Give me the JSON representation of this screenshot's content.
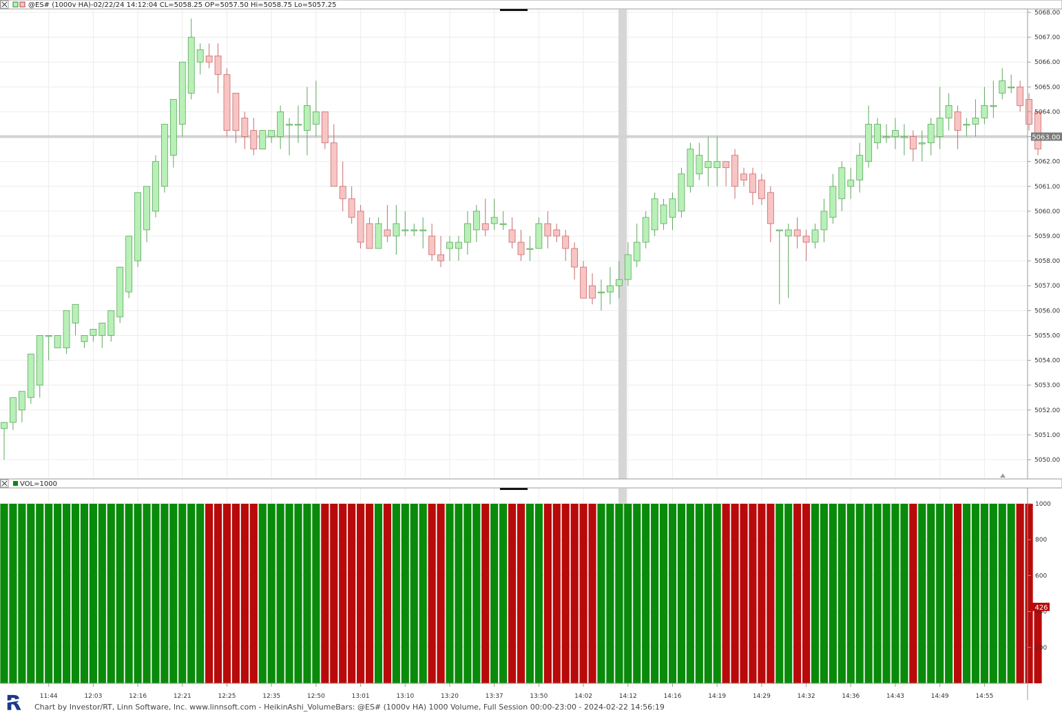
{
  "price_pane": {
    "title": "@ES# (1000v HA)-02/22/24 14:12:04 CL=5058.25 OP=5057.50 Hi=5058.75 Lo=5057.25",
    "current_price_label": "5063.00",
    "close_icon": "close-x-icon"
  },
  "volume_pane": {
    "title": "VOL=1000",
    "current_volume_label": "426",
    "close_icon": "close-x-icon"
  },
  "footer": {
    "text": "Chart by Investor/RT, Linn Software, Inc. www.linnsoft.com - HeikinAshi_VolumeBars: @ES# (1000v HA) 1000 Volume, Full Session 00:00-23:00 - 2024-02-22 14:56:19",
    "logo_letter": "R",
    "logo_icon": "investor-rt-logo-icon"
  },
  "colors": {
    "up_fill": "#b8f0b8",
    "up_border": "#5aa85a",
    "down_fill": "#f8c4c4",
    "down_border": "#c86a6a",
    "vol_up": "#0a8a0a",
    "vol_down": "#b80a0a",
    "grid": "#ececec",
    "hline": "#d2d2d2"
  },
  "chart_data": [
    {
      "type": "candlestick",
      "name": "price",
      "y_ticks": [
        "5050.00",
        "5051.00",
        "5052.00",
        "5053.00",
        "5054.00",
        "5055.00",
        "5056.00",
        "5057.00",
        "5058.00",
        "5059.00",
        "5060.00",
        "5061.00",
        "5062.00",
        "5063.00",
        "5064.00",
        "5065.00",
        "5066.00",
        "5067.00",
        "5068.00"
      ],
      "ylim": [
        5049.3,
        5068.2
      ],
      "x_tick_labels": [
        "11:44",
        "12:03",
        "12:16",
        "12:21",
        "12:25",
        "12:35",
        "12:50",
        "13:01",
        "13:10",
        "13:20",
        "13:37",
        "13:50",
        "14:02",
        "14:12",
        "14:16",
        "14:19",
        "14:29",
        "14:32",
        "14:36",
        "14:43",
        "14:49",
        "14:55"
      ],
      "x_tick_bar_index": [
        5,
        10,
        15,
        20,
        25,
        30,
        35,
        40,
        45,
        50,
        55,
        60,
        65,
        70,
        75,
        80,
        85,
        90,
        95,
        100,
        105,
        110
      ],
      "reference_line": 5063.0,
      "highlight_bar_index": 69,
      "bars": [
        [
          5051.25,
          5051.5,
          5050.0,
          5051.25
        ],
        [
          5051.5,
          5052.5,
          5051.2,
          5052.5
        ],
        [
          5052.0,
          5052.75,
          5051.5,
          5052.7
        ],
        [
          5052.5,
          5054.25,
          5052.25,
          5054.25
        ],
        [
          5053.0,
          5055.0,
          5052.5,
          5054.9
        ],
        [
          5055.0,
          5055.0,
          5054.0,
          5054.25
        ],
        [
          5054.5,
          5055.0,
          5054.5,
          5054.75
        ],
        [
          5054.5,
          5056.0,
          5054.25,
          5055.5
        ],
        [
          5055.5,
          5056.25,
          5055.0,
          5055.75
        ],
        [
          5054.75,
          5055.0,
          5054.5,
          5055.0
        ],
        [
          5055.0,
          5055.25,
          5054.75,
          5055.0
        ],
        [
          5055.0,
          5055.5,
          5054.5,
          5055.0
        ],
        [
          5055.0,
          5056.0,
          5054.75,
          5055.75
        ],
        [
          5055.75,
          5057.75,
          5055.5,
          5057.75
        ],
        [
          5056.75,
          5059.0,
          5056.5,
          5059.0
        ],
        [
          5058.0,
          5060.75,
          5057.75,
          5060.25
        ],
        [
          5059.25,
          5061.0,
          5058.75,
          5061.0
        ],
        [
          5060.0,
          5062.0,
          5059.75,
          5062.25
        ],
        [
          5061.0,
          5063.5,
          5060.75,
          5063.5
        ],
        [
          5062.25,
          5064.5,
          5061.75,
          5064.5
        ],
        [
          5063.5,
          5066.0,
          5063.0,
          5066.0
        ],
        [
          5064.75,
          5067.0,
          5064.5,
          5067.75
        ],
        [
          5066.0,
          5066.5,
          5065.5,
          5066.75
        ],
        [
          5066.25,
          5066.0,
          5065.75,
          5066.75
        ],
        [
          5066.25,
          5065.5,
          5064.75,
          5066.75
        ],
        [
          5065.5,
          5063.25,
          5063.0,
          5065.75
        ],
        [
          5064.75,
          5063.25,
          5062.75,
          5064.75
        ],
        [
          5063.75,
          5063.0,
          5062.5,
          5064.0
        ],
        [
          5063.25,
          5062.5,
          5062.25,
          5063.75
        ],
        [
          5062.5,
          5063.25,
          5062.5,
          5063.0
        ],
        [
          5063.0,
          5063.25,
          5062.75,
          5063.0
        ],
        [
          5063.0,
          5064.0,
          5062.5,
          5064.25
        ],
        [
          5063.5,
          5063.5,
          5062.25,
          5063.75
        ],
        [
          5063.5,
          5063.5,
          5062.75,
          5064.25
        ],
        [
          5063.25,
          5064.25,
          5062.25,
          5065.0
        ],
        [
          5063.5,
          5064.0,
          5063.0,
          5065.25
        ],
        [
          5064.0,
          5062.75,
          5062.5,
          5064.0
        ],
        [
          5062.75,
          5061.0,
          5061.5,
          5063.5
        ],
        [
          5061.0,
          5060.5,
          5060.0,
          5062.0
        ],
        [
          5060.5,
          5059.75,
          5059.5,
          5061.0
        ],
        [
          5060.0,
          5058.75,
          5058.5,
          5060.25
        ],
        [
          5059.5,
          5058.5,
          5058.75,
          5059.75
        ],
        [
          5058.5,
          5059.5,
          5058.5,
          5059.75
        ],
        [
          5059.25,
          5059.0,
          5058.75,
          5060.25
        ],
        [
          5059.0,
          5059.5,
          5058.25,
          5060.25
        ],
        [
          5059.25,
          5059.25,
          5059.0,
          5060.0
        ],
        [
          5059.25,
          5059.25,
          5059.0,
          5059.5
        ],
        [
          5059.25,
          5059.25,
          5058.5,
          5059.75
        ],
        [
          5059.0,
          5058.25,
          5058.0,
          5059.5
        ],
        [
          5058.25,
          5058.0,
          5057.75,
          5059.0
        ],
        [
          5058.5,
          5058.75,
          5058.0,
          5059.0
        ],
        [
          5058.5,
          5058.75,
          5058.0,
          5059.0
        ],
        [
          5058.75,
          5059.5,
          5058.25,
          5060.0
        ],
        [
          5059.25,
          5060.0,
          5058.75,
          5060.25
        ],
        [
          5059.5,
          5059.25,
          5059.0,
          5060.5
        ],
        [
          5059.5,
          5059.75,
          5059.25,
          5060.5
        ],
        [
          5059.5,
          5059.5,
          5059.25,
          5060.0
        ],
        [
          5059.25,
          5058.75,
          5058.5,
          5059.75
        ],
        [
          5058.75,
          5058.25,
          5058.0,
          5059.25
        ],
        [
          5058.5,
          5058.5,
          5058.0,
          5059.0
        ],
        [
          5058.5,
          5059.5,
          5058.5,
          5059.75
        ],
        [
          5059.5,
          5059.0,
          5058.5,
          5060.0
        ],
        [
          5059.25,
          5059.0,
          5058.75,
          5059.5
        ],
        [
          5059.0,
          5058.5,
          5058.0,
          5059.25
        ],
        [
          5058.5,
          5057.75,
          5057.25,
          5058.75
        ],
        [
          5057.75,
          5056.5,
          5056.5,
          5058.0
        ],
        [
          5057.0,
          5056.5,
          5056.25,
          5057.5
        ],
        [
          5056.75,
          5056.75,
          5056.0,
          5057.25
        ],
        [
          5056.75,
          5057.0,
          5056.25,
          5057.75
        ],
        [
          5057.0,
          5057.25,
          5056.5,
          5058.0
        ],
        [
          5057.25,
          5058.25,
          5057.0,
          5058.75
        ],
        [
          5058.0,
          5058.75,
          5057.75,
          5059.5
        ],
        [
          5058.75,
          5059.75,
          5058.5,
          5060.0
        ],
        [
          5059.25,
          5060.5,
          5059.0,
          5060.75
        ],
        [
          5059.5,
          5060.25,
          5059.25,
          5060.5
        ],
        [
          5059.75,
          5060.5,
          5059.25,
          5060.75
        ],
        [
          5060.0,
          5061.5,
          5059.75,
          5061.75
        ],
        [
          5061.0,
          5062.5,
          5060.75,
          5062.75
        ],
        [
          5061.5,
          5062.25,
          5061.25,
          5062.75
        ],
        [
          5061.75,
          5062.0,
          5061.0,
          5063.0
        ],
        [
          5061.75,
          5062.0,
          5061.0,
          5063.0
        ],
        [
          5062.0,
          5061.75,
          5061.0,
          5062.0
        ],
        [
          5062.25,
          5061.0,
          5060.5,
          5062.5
        ],
        [
          5061.5,
          5061.25,
          5061.0,
          5061.75
        ],
        [
          5061.5,
          5060.75,
          5060.25,
          5061.75
        ],
        [
          5061.25,
          5060.5,
          5060.25,
          5061.5
        ],
        [
          5060.75,
          5059.5,
          5058.75,
          5061.0
        ],
        [
          5059.25,
          5059.25,
          5056.25,
          5059.0
        ],
        [
          5059.0,
          5059.25,
          5056.5,
          5059.5
        ],
        [
          5059.25,
          5059.0,
          5058.5,
          5059.75
        ],
        [
          5059.0,
          5058.75,
          5058.0,
          5059.25
        ],
        [
          5058.75,
          5059.25,
          5058.5,
          5059.5
        ],
        [
          5059.25,
          5060.0,
          5058.75,
          5060.5
        ],
        [
          5059.75,
          5061.0,
          5059.5,
          5061.5
        ],
        [
          5060.5,
          5061.75,
          5060.0,
          5062.0
        ],
        [
          5061.0,
          5061.25,
          5060.5,
          5061.75
        ],
        [
          5061.25,
          5062.25,
          5060.75,
          5062.75
        ],
        [
          5062.0,
          5063.5,
          5061.75,
          5064.25
        ],
        [
          5062.75,
          5063.5,
          5062.5,
          5063.75
        ],
        [
          5063.0,
          5063.0,
          5062.75,
          5063.5
        ],
        [
          5063.0,
          5063.25,
          5062.5,
          5063.75
        ],
        [
          5063.0,
          5063.0,
          5062.25,
          5063.5
        ],
        [
          5063.0,
          5062.5,
          5062.0,
          5063.25
        ],
        [
          5062.75,
          5062.75,
          5062.0,
          5063.25
        ],
        [
          5062.75,
          5063.5,
          5062.25,
          5063.75
        ],
        [
          5063.0,
          5063.75,
          5062.5,
          5065.0
        ],
        [
          5063.75,
          5064.25,
          5063.25,
          5064.75
        ],
        [
          5064.0,
          5063.25,
          5062.5,
          5064.25
        ],
        [
          5063.5,
          5063.5,
          5063.0,
          5063.75
        ],
        [
          5063.5,
          5063.75,
          5063.0,
          5064.5
        ],
        [
          5063.75,
          5064.25,
          5063.5,
          5065.0
        ],
        [
          5064.25,
          5064.25,
          5063.75,
          5065.25
        ],
        [
          5064.75,
          5065.25,
          5064.5,
          5065.75
        ],
        [
          5065.0,
          5065.0,
          5064.75,
          5065.5
        ],
        [
          5065.0,
          5064.25,
          5064.0,
          5065.25
        ],
        [
          5064.5,
          5063.5,
          5063.25,
          5064.75
        ],
        [
          5064.0,
          5062.5,
          5062.25,
          5064.0
        ]
      ]
    },
    {
      "type": "bar",
      "name": "volume",
      "y_ticks": [
        200,
        400,
        600,
        800,
        1000
      ],
      "ylim": [
        0,
        1050
      ],
      "values": "all bars 1000 except the last bar at 426",
      "last_value": 426,
      "bar_value_default": 1000
    }
  ]
}
